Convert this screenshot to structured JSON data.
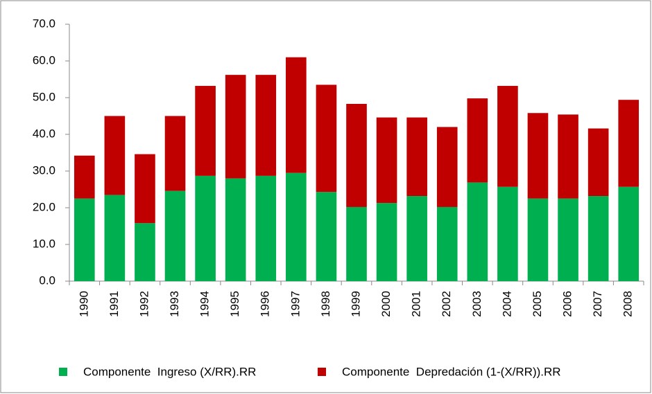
{
  "chart_data": {
    "type": "stacked_bar",
    "categories": [
      "1990",
      "1991",
      "1992",
      "1993",
      "1994",
      "1995",
      "1996",
      "1997",
      "1998",
      "1999",
      "2000",
      "2001",
      "2002",
      "2003",
      "2004",
      "2005",
      "2006",
      "2007",
      "2008"
    ],
    "series": [
      {
        "name": "Componente  Ingreso (X/RR).RR",
        "color": "#00b050",
        "values": [
          22.5,
          23.5,
          15.8,
          24.6,
          28.7,
          28.0,
          28.7,
          29.5,
          24.3,
          20.2,
          21.3,
          23.2,
          20.2,
          26.9,
          25.7,
          22.5,
          22.5,
          23.2,
          25.7
        ]
      },
      {
        "name": "Componente  Depredación (1-(X/RR)).RR",
        "color": "#c00000",
        "values": [
          11.7,
          21.5,
          18.8,
          20.4,
          24.5,
          28.2,
          27.5,
          31.5,
          29.2,
          28.1,
          23.3,
          21.4,
          21.8,
          22.9,
          27.5,
          23.3,
          22.9,
          18.4,
          23.7
        ]
      }
    ],
    "ylim": [
      0,
      70
    ],
    "yticks": [
      {
        "value": 0,
        "label": "0.0"
      },
      {
        "value": 10,
        "label": "10.0"
      },
      {
        "value": 20,
        "label": "20.0"
      },
      {
        "value": 30,
        "label": "30.0"
      },
      {
        "value": 40,
        "label": "40.0"
      },
      {
        "value": 50,
        "label": "50.0"
      },
      {
        "value": 60,
        "label": "60.0"
      },
      {
        "value": 70,
        "label": "70.0"
      }
    ],
    "grid": false,
    "legend": "bottom"
  }
}
